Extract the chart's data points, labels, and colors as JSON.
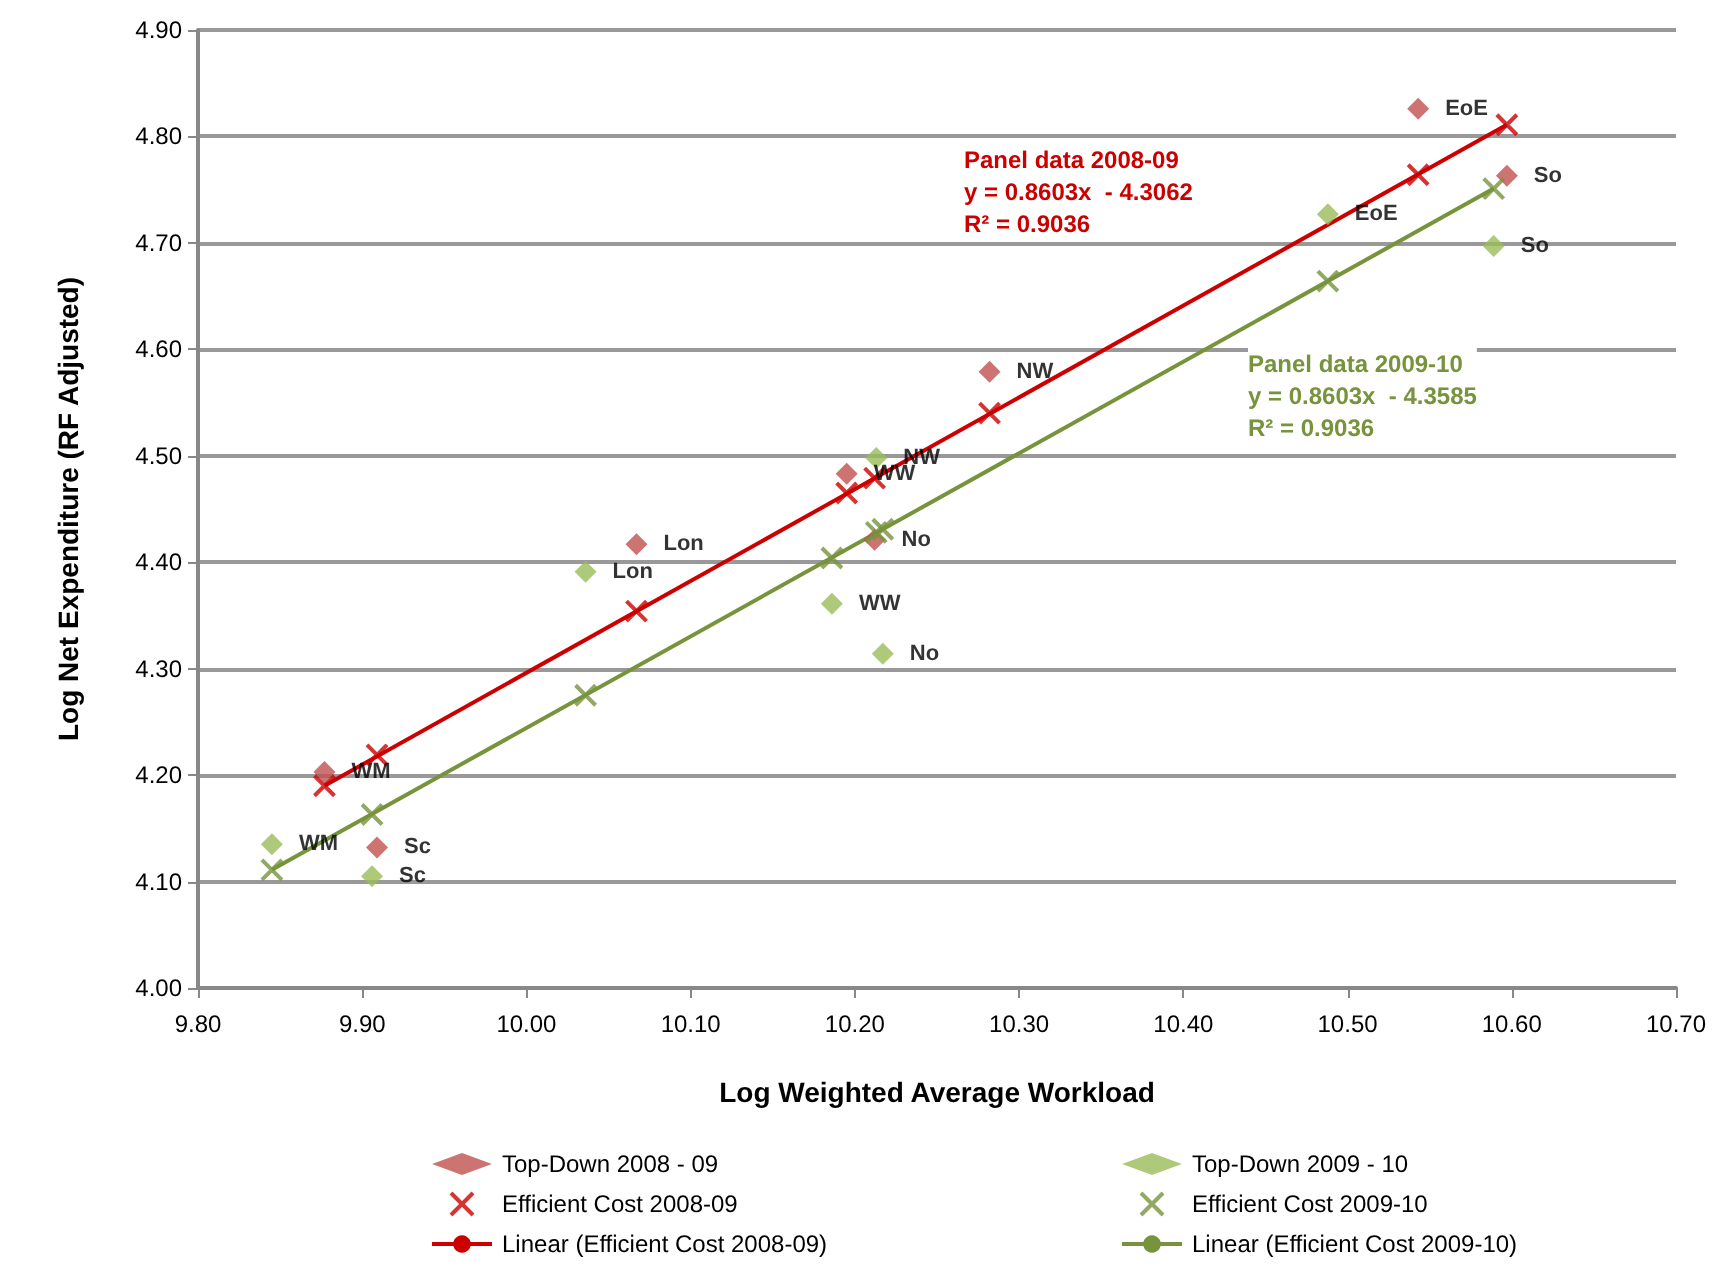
{
  "chart_data": {
    "type": "scatter",
    "xlabel": "Log Weighted Average Workload",
    "ylabel": "Log Net Expenditure (RF Adjusted)",
    "xlim": [
      9.8,
      10.7
    ],
    "xticks": [
      {
        "value": 9.8,
        "label": "9.80"
      },
      {
        "value": 9.9,
        "label": "9.90"
      },
      {
        "value": 10.0,
        "label": "10.00"
      },
      {
        "value": 10.1,
        "label": "10.10"
      },
      {
        "value": 10.2,
        "label": "10.20"
      },
      {
        "value": 10.3,
        "label": "10.30"
      },
      {
        "value": 10.4,
        "label": "10.40"
      },
      {
        "value": 10.5,
        "label": "10.50"
      },
      {
        "value": 10.6,
        "label": "10.60"
      },
      {
        "value": 10.7,
        "label": "10.70"
      }
    ],
    "ylim": [
      4.0,
      4.9
    ],
    "yticks": [
      {
        "value": 4.0,
        "label": "4.00"
      },
      {
        "value": 4.1,
        "label": "4.10"
      },
      {
        "value": 4.2,
        "label": "4.20"
      },
      {
        "value": 4.3,
        "label": "4.30"
      },
      {
        "value": 4.4,
        "label": "4.40"
      },
      {
        "value": 4.5,
        "label": "4.50"
      },
      {
        "value": 4.6,
        "label": "4.60"
      },
      {
        "value": 4.7,
        "label": "4.70"
      },
      {
        "value": 4.8,
        "label": "4.80"
      },
      {
        "value": 4.9,
        "label": "4.90"
      }
    ],
    "grid": "y",
    "legend": "bottom",
    "annotations": [
      "Panel data 2008-09\ny = 0.8603x  - 4.3062\nR² = 0.9036",
      "Panel data 2009-10\ny = 0.8603x  - 4.3585\nR² = 0.9036"
    ],
    "series": [
      {
        "name": "Top-Down 2008 - 09",
        "marker": "diamond",
        "color": "#c0504d",
        "x": [
          9.877,
          9.909,
          10.067,
          10.195,
          10.212,
          10.282,
          10.543,
          10.597
        ],
        "values": [
          4.203,
          4.132,
          4.417,
          4.483,
          4.421,
          4.579,
          4.826,
          4.763
        ],
        "value_labels": [
          "WM",
          "Sc",
          "Lon",
          "WW",
          "No",
          "NW",
          "EoE",
          "So"
        ]
      },
      {
        "name": "Top-Down 2009 - 10",
        "marker": "diamond",
        "color": "#9bbb59",
        "x": [
          9.845,
          9.906,
          10.036,
          10.186,
          10.217,
          10.213,
          10.488,
          10.589
        ],
        "values": [
          4.135,
          4.105,
          4.391,
          4.361,
          4.314,
          4.498,
          4.727,
          4.697
        ],
        "value_labels": [
          "WM",
          "Sc",
          "Lon",
          "WW",
          "No",
          "NW",
          "EoE",
          "So"
        ]
      },
      {
        "name": "Efficient Cost 2008-09",
        "marker": "cross",
        "color": "#cc0000",
        "x": [
          9.877,
          9.909,
          10.067,
          10.195,
          10.212,
          10.282,
          10.543,
          10.597
        ],
        "values": [
          4.19,
          4.219,
          4.354,
          4.465,
          4.479,
          4.54,
          4.764,
          4.811
        ]
      },
      {
        "name": "Efficient Cost 2009-10",
        "marker": "cross",
        "color": "#77933c",
        "x": [
          9.845,
          9.906,
          10.036,
          10.186,
          10.217,
          10.213,
          10.488,
          10.589
        ],
        "values": [
          4.111,
          4.163,
          4.275,
          4.404,
          4.431,
          4.428,
          4.664,
          4.751
        ]
      },
      {
        "name": "Linear (Efficient Cost 2008-09)",
        "type": "line",
        "marker": "none",
        "line_style": "solid",
        "color": "#cc0000",
        "x": [
          9.877,
          10.597
        ],
        "values": [
          4.19,
          4.811
        ]
      },
      {
        "name": "Linear (Efficient Cost 2009-10)",
        "type": "line",
        "marker": "none",
        "line_style": "solid",
        "color": "#77933c",
        "x": [
          9.845,
          10.589
        ],
        "values": [
          4.111,
          4.751
        ]
      }
    ]
  }
}
